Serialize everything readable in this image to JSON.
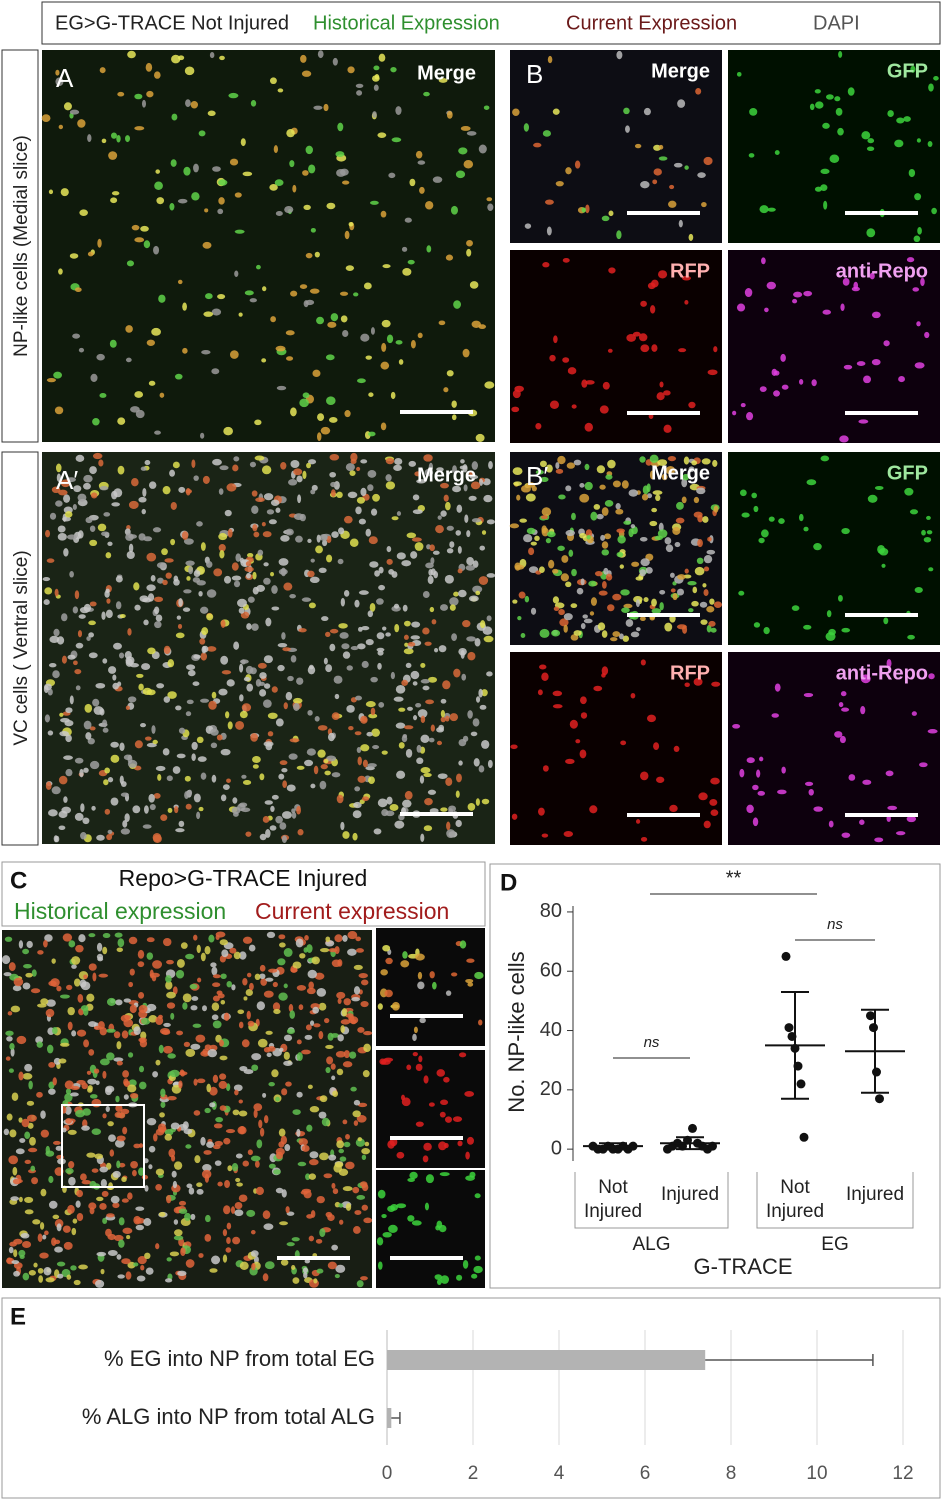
{
  "header": {
    "title": "EG>G-TRACE Not Injured",
    "legend": [
      "Historical Expression",
      "Current Expression",
      "DAPI"
    ]
  },
  "rows": [
    "NP-like cells (Medial slice)",
    "VC cells ( Ventral slice)"
  ],
  "panels": [
    {
      "letter": "A",
      "tag": "Merge"
    },
    {
      "letter": "B",
      "tags": [
        "Merge",
        "GFP",
        "RFP",
        "anti-Repo"
      ]
    },
    {
      "letter": "A′",
      "tag": "Merge"
    },
    {
      "letter": "B′",
      "tags": [
        "Merge",
        "GFP",
        "RFP",
        "anti-Repo"
      ]
    }
  ],
  "panel_c": {
    "letter": "C",
    "title": "Repo>G-TRACE Injured",
    "legend": [
      "Historical expression",
      "Current expression"
    ]
  },
  "chart_data": [
    {
      "letter": "D",
      "type": "dot",
      "ylabel": "No. NP-like cells",
      "xlabel": "G-TRACE",
      "categories": [
        "Not Injured",
        "Injured",
        "Not Injured",
        "Injured"
      ],
      "groups": [
        "ALG",
        "EG"
      ],
      "points": [
        [
          1,
          0,
          0,
          1,
          0,
          0,
          1,
          0,
          1
        ],
        [
          0,
          1,
          2,
          1,
          3,
          7,
          2,
          1,
          0,
          1
        ],
        [
          65,
          41,
          38,
          34,
          28,
          22,
          4
        ],
        [
          45,
          41,
          26,
          17
        ]
      ],
      "means": [
        1,
        2,
        35,
        33
      ],
      "errors": [
        1,
        2,
        18,
        14
      ],
      "comparisons": [
        {
          "label": "**",
          "between": [
            1,
            2
          ]
        },
        {
          "label": "ns",
          "between": [
            0,
            1
          ]
        },
        {
          "label": "ns",
          "between": [
            2,
            3
          ]
        }
      ],
      "color": "#111111",
      "ylim": [
        -4,
        82
      ],
      "yticks": [
        0,
        20,
        40,
        60,
        80
      ]
    },
    {
      "letter": "E",
      "type": "hbar",
      "categories": [
        "% EG into NP from total EG",
        "% ALG into NP from total ALG"
      ],
      "values": [
        7.4,
        0.1
      ],
      "errors": [
        3.9,
        0.2
      ],
      "color": "#b3b3b3",
      "xlim": [
        0,
        12
      ],
      "xticks": [
        0,
        2,
        4,
        6,
        8,
        10,
        12
      ],
      "grid": true
    }
  ]
}
